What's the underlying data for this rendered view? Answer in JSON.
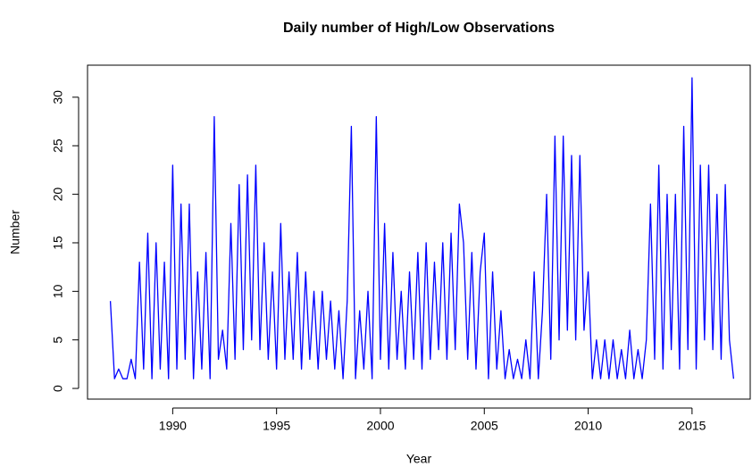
{
  "chart_data": {
    "type": "line",
    "title": "Daily number of High/Low Observations",
    "xlabel": "Year",
    "ylabel": "Number",
    "x": [
      1987,
      1987.2,
      1987.4,
      1987.6,
      1987.8,
      1988,
      1988.2,
      1988.4,
      1988.6,
      1988.8,
      1989,
      1989.2,
      1989.4,
      1989.6,
      1989.8,
      1990,
      1990.2,
      1990.4,
      1990.6,
      1990.8,
      1991,
      1991.2,
      1991.4,
      1991.6,
      1991.8,
      1992,
      1992.2,
      1992.4,
      1992.6,
      1992.8,
      1993,
      1993.2,
      1993.4,
      1993.6,
      1993.8,
      1994,
      1994.2,
      1994.4,
      1994.6,
      1994.8,
      1995,
      1995.2,
      1995.4,
      1995.6,
      1995.8,
      1996,
      1996.2,
      1996.4,
      1996.6,
      1996.8,
      1997,
      1997.2,
      1997.4,
      1997.6,
      1997.8,
      1998,
      1998.2,
      1998.4,
      1998.6,
      1998.8,
      1999,
      1999.2,
      1999.4,
      1999.6,
      1999.8,
      2000,
      2000.2,
      2000.4,
      2000.6,
      2000.8,
      2001,
      2001.2,
      2001.4,
      2001.6,
      2001.8,
      2002,
      2002.2,
      2002.4,
      2002.6,
      2002.8,
      2003,
      2003.2,
      2003.4,
      2003.6,
      2003.8,
      2004,
      2004.2,
      2004.4,
      2004.6,
      2004.8,
      2005,
      2005.2,
      2005.4,
      2005.6,
      2005.8,
      2006,
      2006.2,
      2006.4,
      2006.6,
      2006.8,
      2007,
      2007.2,
      2007.4,
      2007.6,
      2007.8,
      2008,
      2008.2,
      2008.4,
      2008.6,
      2008.8,
      2009,
      2009.2,
      2009.4,
      2009.6,
      2009.8,
      2010,
      2010.2,
      2010.4,
      2010.6,
      2010.8,
      2011,
      2011.2,
      2011.4,
      2011.6,
      2011.8,
      2012,
      2012.2,
      2012.4,
      2012.6,
      2012.8,
      2013,
      2013.2,
      2013.4,
      2013.6,
      2013.8,
      2014,
      2014.2,
      2014.4,
      2014.6,
      2014.8,
      2015,
      2015.2,
      2015.4,
      2015.6,
      2015.8,
      2016,
      2016.2,
      2016.4,
      2016.6,
      2016.8,
      2017
    ],
    "series": [
      {
        "name": "Number",
        "color": "#0000ff",
        "values": [
          9,
          1,
          2,
          1,
          1,
          3,
          1,
          13,
          2,
          16,
          1,
          15,
          2,
          13,
          1,
          23,
          2,
          19,
          3,
          19,
          1,
          12,
          2,
          14,
          1,
          28,
          3,
          6,
          2,
          17,
          3,
          21,
          4,
          22,
          5,
          23,
          4,
          15,
          3,
          12,
          2,
          17,
          3,
          12,
          3,
          14,
          2,
          12,
          3,
          10,
          2,
          10,
          3,
          9,
          2,
          8,
          1,
          9,
          27,
          1,
          8,
          2,
          10,
          1,
          28,
          3,
          17,
          2,
          14,
          3,
          10,
          2,
          12,
          3,
          14,
          2,
          15,
          3,
          13,
          4,
          15,
          3,
          16,
          4,
          19,
          15,
          3,
          14,
          2,
          12,
          16,
          1,
          12,
          2,
          8,
          1,
          4,
          1,
          3,
          1,
          5,
          1,
          12,
          1,
          8,
          20,
          3,
          26,
          5,
          26,
          6,
          24,
          5,
          24,
          6,
          12,
          1,
          5,
          1,
          5,
          1,
          5,
          1,
          4,
          1,
          6,
          1,
          4,
          1,
          5,
          19,
          3,
          23,
          2,
          20,
          4,
          20,
          2,
          27,
          4,
          32,
          2,
          23,
          5,
          23,
          4,
          20,
          3,
          21,
          5,
          1
        ]
      }
    ],
    "xlim": [
      1985.9,
      2017.8
    ],
    "ylim": [
      -1.1,
      33.3
    ],
    "xticks": [
      1990,
      1995,
      2000,
      2005,
      2010,
      2015
    ],
    "yticks": [
      0,
      5,
      10,
      15,
      20,
      25,
      30
    ]
  }
}
